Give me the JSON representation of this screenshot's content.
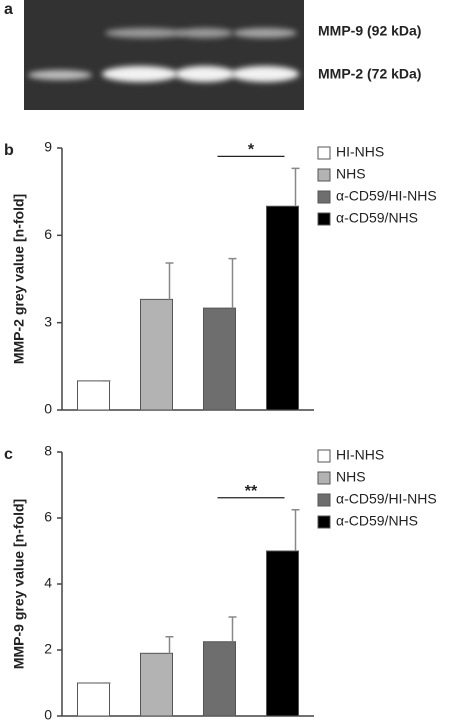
{
  "gel": {
    "panel": "a",
    "labels": [
      "MMP-9 (92 kDa)",
      "MMP-2 (72 kDa)"
    ]
  },
  "chart_data": [
    {
      "type": "bar",
      "panel": "b",
      "ylabel": "MMP-2 grey value [n-fold]",
      "categories": [
        "HI-NHS",
        "NHS",
        "α-CD59/HI-NHS",
        "α-CD59/NHS"
      ],
      "colors": [
        "#ffffff",
        "#b3b3b3",
        "#6e6e6e",
        "#000000"
      ],
      "values": [
        1,
        3.8,
        3.5,
        7.0
      ],
      "errors": [
        0,
        1.25,
        1.7,
        1.3
      ],
      "ylim": [
        0,
        9
      ],
      "yticks": [
        0,
        3,
        6,
        9
      ],
      "annotation": "*"
    },
    {
      "type": "bar",
      "panel": "c",
      "ylabel": "MMP-9 grey value [n-fold]",
      "categories": [
        "HI-NHS",
        "NHS",
        "α-CD59/HI-NHS",
        "α-CD59/NHS"
      ],
      "colors": [
        "#ffffff",
        "#b3b3b3",
        "#6e6e6e",
        "#000000"
      ],
      "values": [
        1,
        1.9,
        2.25,
        5.0
      ],
      "errors": [
        0,
        0.5,
        0.75,
        1.25
      ],
      "ylim": [
        0,
        8
      ],
      "yticks": [
        0,
        2,
        4,
        6,
        8
      ],
      "annotation": "**"
    }
  ]
}
